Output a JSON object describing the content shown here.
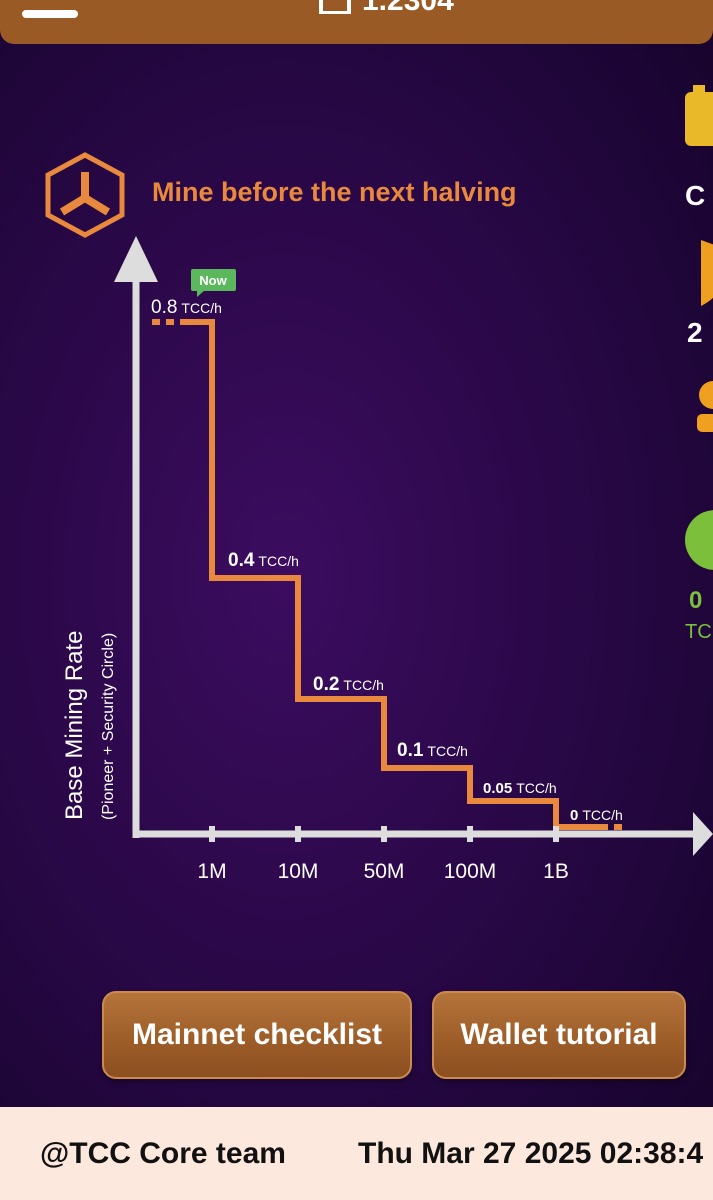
{
  "header": {
    "balance": "1.2304",
    "menu_icon": "hamburger-icon",
    "logo_icon": "tcc-logo-icon"
  },
  "promo": {
    "title": "Mine before the next halving",
    "logo_icon": "tcc-logo-icon"
  },
  "chart_data": {
    "type": "step-line",
    "title": "Mine before the next halving",
    "ylabel": "Base Mining Rate",
    "ylabel_sub": "(Pioneer + Security Circle)",
    "xlabel": "",
    "x_ticks": [
      "1M",
      "10M",
      "50M",
      "100M",
      "1B"
    ],
    "unit": "TCC/h",
    "now_badge": "Now",
    "series": [
      {
        "name": "Base Mining Rate",
        "steps": [
          {
            "rate": "0.8",
            "from": "0",
            "to": "1M",
            "current": true
          },
          {
            "rate": "0.4",
            "from": "1M",
            "to": "10M"
          },
          {
            "rate": "0.2",
            "from": "10M",
            "to": "50M"
          },
          {
            "rate": "0.1",
            "from": "50M",
            "to": "100M"
          },
          {
            "rate": "0.05",
            "from": "100M",
            "to": "1B"
          },
          {
            "rate": "0",
            "from": "1B",
            "to": ""
          }
        ]
      }
    ],
    "colors": {
      "line": "#e8893e",
      "axis": "#dddddd",
      "title": "#e8893e",
      "now_badge": "#5cb85c"
    }
  },
  "side_panel": {
    "items": [
      "C",
      "2",
      "0",
      "TC"
    ],
    "colors": {
      "gold": "#e9b92a",
      "orange": "#f0a020",
      "green": "#7bbf3a"
    }
  },
  "buttons": {
    "mainnet": "Mainnet checklist",
    "wallet": "Wallet tutorial"
  },
  "footer": {
    "team": "@TCC Core team",
    "timestamp": "Thu Mar 27 2025 02:38:4"
  }
}
